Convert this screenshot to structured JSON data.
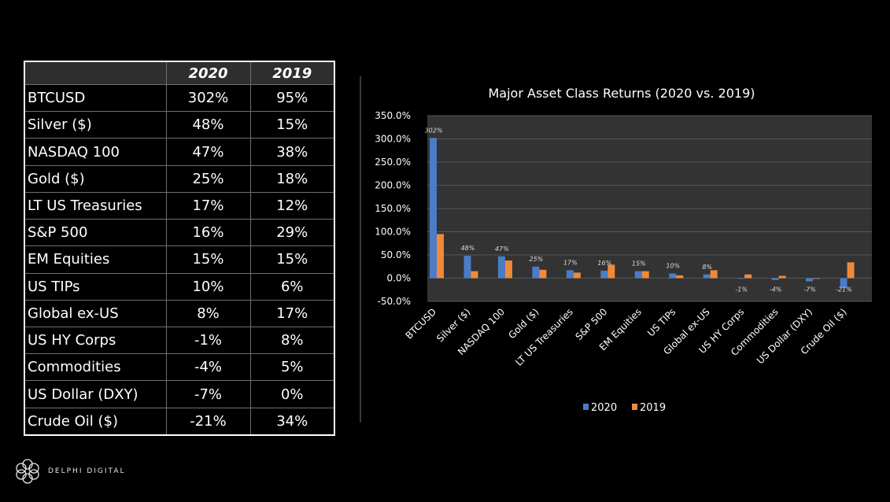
{
  "table": {
    "headers": [
      "",
      "2020",
      "2019"
    ],
    "rows": [
      [
        "BTCUSD",
        "302%",
        "95%"
      ],
      [
        "Silver ($)",
        "48%",
        "15%"
      ],
      [
        "NASDAQ 100",
        "47%",
        "38%"
      ],
      [
        "Gold ($)",
        "25%",
        "18%"
      ],
      [
        "LT US Treasuries",
        "17%",
        "12%"
      ],
      [
        "S&P 500",
        "16%",
        "29%"
      ],
      [
        "EM Equities",
        "15%",
        "15%"
      ],
      [
        "US TIPs",
        "10%",
        "6%"
      ],
      [
        "Global ex-US",
        "8%",
        "17%"
      ],
      [
        "US HY Corps",
        "-1%",
        "8%"
      ],
      [
        "Commodities",
        "-4%",
        "5%"
      ],
      [
        "US Dollar (DXY)",
        "-7%",
        "0%"
      ],
      [
        "Crude Oil ($)",
        "-21%",
        "34%"
      ]
    ]
  },
  "chart_data": {
    "type": "bar",
    "title": "Major Asset Class Returns (2020 vs. 2019)",
    "categories": [
      "BTCUSD",
      "Silver ($)",
      "NASDAQ 100",
      "Gold ($)",
      "LT US Treasuries",
      "S&P 500",
      "EM Equities",
      "US TIPs",
      "Global ex-US",
      "US HY Corps",
      "Commodities",
      "US Dollar (DXY)",
      "Crude Oil ($)"
    ],
    "series": [
      {
        "name": "2020",
        "values": [
          302,
          48,
          47,
          25,
          17,
          16,
          15,
          10,
          8,
          -1,
          -4,
          -7,
          -21
        ],
        "labels": [
          "302%",
          "48%",
          "47%",
          "25%",
          "17%",
          "16%",
          "15%",
          "10%",
          "8%",
          "-1%",
          "-4%",
          "-7%",
          "-21%"
        ]
      },
      {
        "name": "2019",
        "values": [
          95,
          15,
          38,
          18,
          12,
          29,
          15,
          6,
          17,
          8,
          5,
          0,
          34
        ]
      }
    ],
    "ylim": [
      -50,
      350
    ],
    "yticks": [
      350,
      300,
      250,
      200,
      150,
      100,
      50,
      0,
      -50
    ],
    "ytick_labels": [
      "350.0%",
      "300.0%",
      "250.0%",
      "200.0%",
      "150.0%",
      "100.0%",
      "50.0%",
      "0.0%",
      "-50.0%"
    ],
    "grid": true,
    "legend": "bottom",
    "colors": {
      "2020": "#4a7cc9",
      "2019": "#ef8a3a",
      "plot_bg": "#333333",
      "grid": "#555555"
    }
  },
  "logo": {
    "text": "DELPHI DIGITAL",
    "icon": "delphi-logo-icon"
  }
}
